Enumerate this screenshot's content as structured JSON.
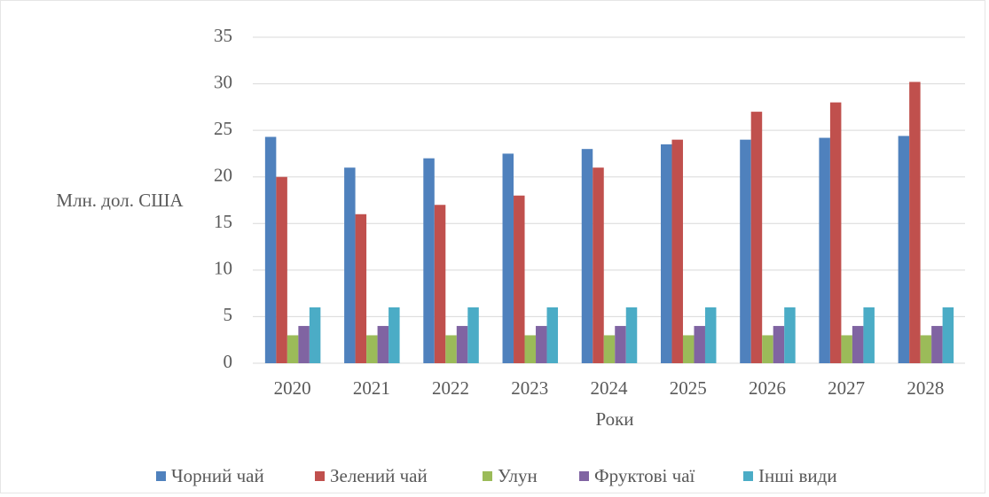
{
  "chart_data": {
    "type": "bar",
    "x_label": "Роки",
    "y_label": "Млн. дол. США",
    "categories": [
      "2020",
      "2021",
      "2022",
      "2023",
      "2024",
      "2025",
      "2026",
      "2027",
      "2028"
    ],
    "series": [
      {
        "name": "Чорний чай",
        "color": "#4f81bd",
        "values": [
          24.3,
          21,
          22,
          22.5,
          23,
          23.5,
          24,
          24.2,
          24.4
        ]
      },
      {
        "name": "Зелений чай",
        "color": "#c0504d",
        "values": [
          20,
          16,
          17,
          18,
          21,
          24,
          27,
          28,
          30.2
        ]
      },
      {
        "name": "Улун",
        "color": "#9bbb59",
        "values": [
          3,
          3,
          3,
          3,
          3,
          3,
          3,
          3,
          3
        ]
      },
      {
        "name": "Фруктові чаї",
        "color": "#8064a2",
        "values": [
          4,
          4,
          4,
          4,
          4,
          4,
          4,
          4,
          4
        ]
      },
      {
        "name": "Інші види",
        "color": "#4bacc6",
        "values": [
          6,
          6,
          6,
          6,
          6,
          6,
          6,
          6,
          6
        ]
      }
    ],
    "ylim": [
      0,
      35
    ],
    "yticks": [
      0,
      5,
      10,
      15,
      20,
      25,
      30,
      35
    ],
    "grid": true,
    "legend": "bottom"
  }
}
